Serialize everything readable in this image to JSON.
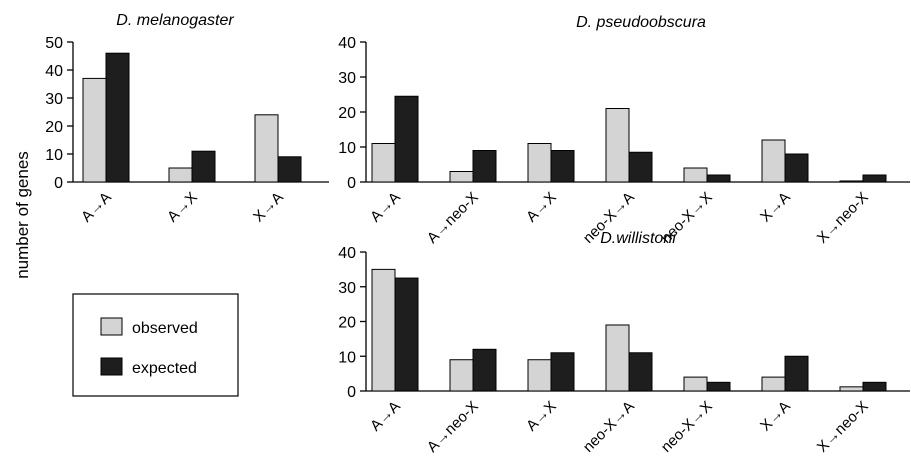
{
  "ylabel_shared": "number of genes",
  "legend": [
    {
      "key": "observed",
      "label": "observed",
      "color": "#d4d4d4"
    },
    {
      "key": "expected",
      "label": "expected",
      "color": "#1e1e1e"
    }
  ],
  "colors": {
    "observed": "#d4d4d4",
    "expected": "#1e1e1e",
    "axis": "#000000"
  },
  "chart_data": [
    {
      "type": "bar",
      "title": "D. melanogaster",
      "categories": [
        "A→A",
        "A→X",
        "X→A"
      ],
      "series": [
        {
          "name": "observed",
          "values": [
            37,
            5,
            24
          ]
        },
        {
          "name": "expected",
          "values": [
            46,
            11,
            9
          ]
        }
      ],
      "ylim": [
        0,
        50
      ],
      "yticks": [
        0,
        10,
        20,
        30,
        40,
        50
      ],
      "ylabel": "number of genes",
      "grid": false
    },
    {
      "type": "bar",
      "title": "D. pseudoobscura",
      "categories": [
        "A→A",
        "A→neo-X",
        "A→X",
        "neo-X→A",
        "neo-X→X",
        "X→A",
        "X→neo-X"
      ],
      "series": [
        {
          "name": "observed",
          "values": [
            11,
            3,
            11,
            21,
            4,
            12,
            0.3
          ]
        },
        {
          "name": "expected",
          "values": [
            24.5,
            9,
            9,
            8.5,
            2,
            8,
            2
          ]
        }
      ],
      "ylim": [
        0,
        40
      ],
      "yticks": [
        0,
        10,
        20,
        30,
        40
      ],
      "grid": false
    },
    {
      "type": "bar",
      "title": "D.willistoni",
      "categories": [
        "A→A",
        "A→neo-X",
        "A→X",
        "neo-X→A",
        "neo-X→X",
        "X→A",
        "X→neo-X"
      ],
      "series": [
        {
          "name": "observed",
          "values": [
            35,
            9,
            9,
            19,
            4,
            4,
            1.2
          ]
        },
        {
          "name": "expected",
          "values": [
            32.5,
            12,
            11,
            11,
            2.5,
            10,
            2.5
          ]
        }
      ],
      "ylim": [
        0,
        40
      ],
      "yticks": [
        0,
        10,
        20,
        30,
        40
      ],
      "grid": false
    }
  ]
}
